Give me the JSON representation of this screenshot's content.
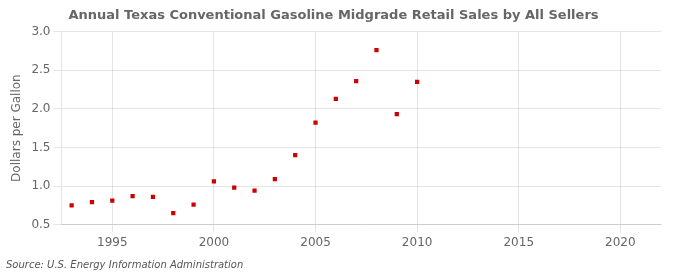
{
  "chart_data": {
    "type": "scatter",
    "title": "Annual Texas Conventional Gasoline Midgrade Retail Sales by All Sellers",
    "ylabel": "Dollars per Gallon",
    "source": "Source: U.S. Energy Information Administration",
    "x": [
      1993,
      1994,
      1995,
      1996,
      1997,
      1998,
      1999,
      2000,
      2001,
      2002,
      2003,
      2004,
      2005,
      2006,
      2007,
      2008,
      2009,
      2010
    ],
    "values": [
      0.75,
      0.79,
      0.81,
      0.87,
      0.86,
      0.65,
      0.76,
      1.06,
      0.98,
      0.94,
      1.09,
      1.4,
      1.82,
      2.13,
      2.36,
      2.76,
      1.93,
      2.35
    ],
    "color": "#cc0000",
    "marker": "square",
    "xlim": [
      1992.5,
      2022
    ],
    "ylim": [
      0.5,
      3.0
    ],
    "xticks": [
      1995,
      2000,
      2005,
      2010,
      2015,
      2020
    ],
    "yticks": [
      {
        "value": 0.5,
        "label": "0.5"
      },
      {
        "value": 1.0,
        "label": "1.0"
      },
      {
        "value": 1.5,
        "label": "1.5"
      },
      {
        "value": 2.0,
        "label": "2.0"
      },
      {
        "value": 2.5,
        "label": "2.5"
      },
      {
        "value": 3.0,
        "label": "3.0"
      }
    ],
    "grid": true
  }
}
